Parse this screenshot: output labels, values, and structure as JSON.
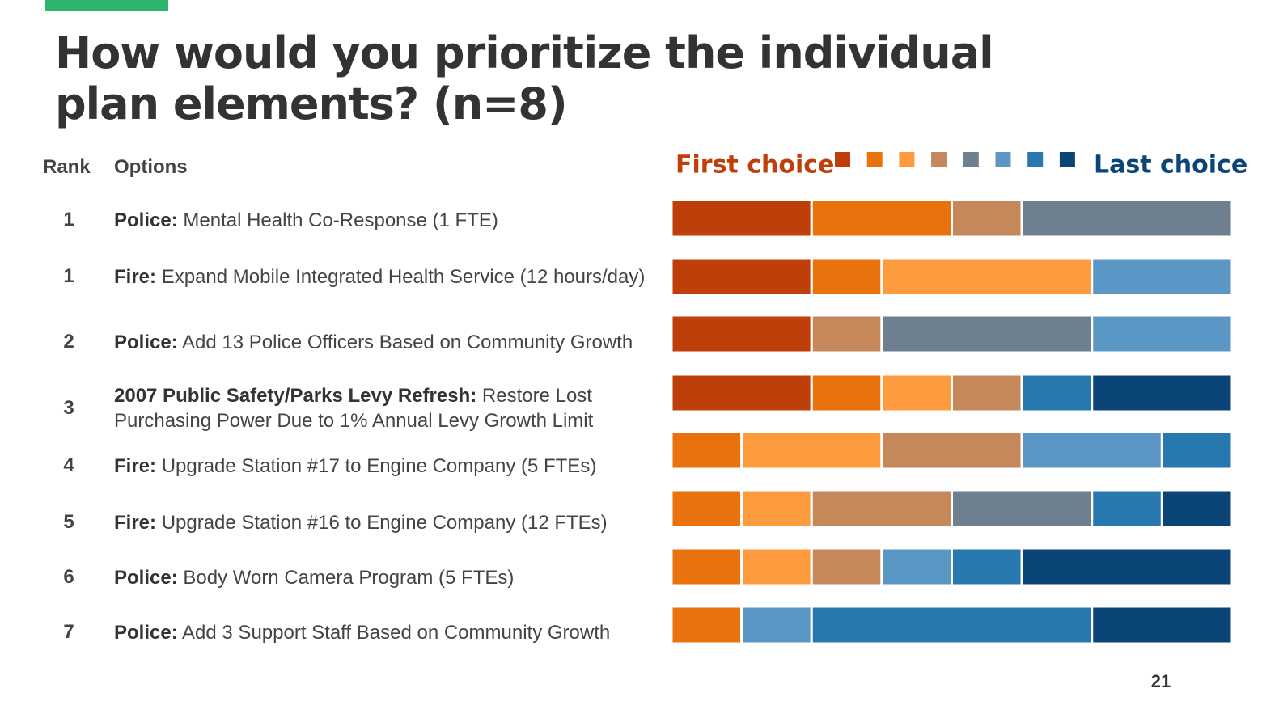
{
  "header": {
    "title": "How would you prioritize the individual plan elements? (n=8)"
  },
  "table": {
    "columns": [
      "Rank",
      "Options"
    ],
    "rows": [
      [
        1,
        "Police:",
        "Mental Health Co-Response (1 FTE)"
      ],
      [
        1,
        "Fire:",
        "Expand Mobile Integrated Health Service (12 hours/day)"
      ],
      [
        2,
        "Police:",
        "Add 13 Police Officers Based on Community Growth"
      ],
      [
        3,
        "2007 Public Safety/Parks Levy Refresh:",
        "Restore Lost Purchasing Power Due to 1% Annual Levy Growth Limit"
      ],
      [
        4,
        "Fire:",
        "Upgrade Station #17 to Engine Company (5 FTEs)"
      ],
      [
        5,
        "Fire:",
        "Upgrade Station #16 to Engine Company (12 FTEs)"
      ],
      [
        6,
        "Police:",
        "Body Worn Camera Program (5 FTEs)"
      ],
      [
        7,
        "Police:",
        "Add 3 Support Staff Based on Community Growth"
      ]
    ]
  },
  "chart_data": {
    "type": "stacked-bar",
    "orientation": "horizontal",
    "legend_labels": [
      "First choice",
      "Last choice"
    ],
    "xlim": [
      0,
      8
    ],
    "series": [
      {
        "color": "#bf3f0b",
        "values": [
          2,
          2,
          2,
          2,
          0,
          0,
          0,
          0
        ]
      },
      {
        "color": "#e8720c",
        "values": [
          2,
          1,
          0,
          1,
          1,
          1,
          1,
          1
        ]
      },
      {
        "color": "#fd9b3e",
        "values": [
          0,
          3,
          0,
          1,
          2,
          1,
          1,
          0
        ]
      },
      {
        "color": "#c4885a",
        "values": [
          1,
          0,
          1,
          1,
          2,
          2,
          1,
          0
        ]
      },
      {
        "color": "#6e7f8f",
        "values": [
          3,
          0,
          3,
          0,
          0,
          2,
          0,
          0
        ]
      },
      {
        "color": "#5b97c4",
        "values": [
          0,
          2,
          2,
          0,
          2,
          0,
          1,
          1
        ]
      },
      {
        "color": "#2878b0",
        "values": [
          0,
          0,
          0,
          1,
          1,
          1,
          1,
          4
        ]
      },
      {
        "color": "#0b4477",
        "values": [
          0,
          0,
          0,
          2,
          0,
          1,
          3,
          2
        ]
      }
    ]
  },
  "page_number": "21"
}
